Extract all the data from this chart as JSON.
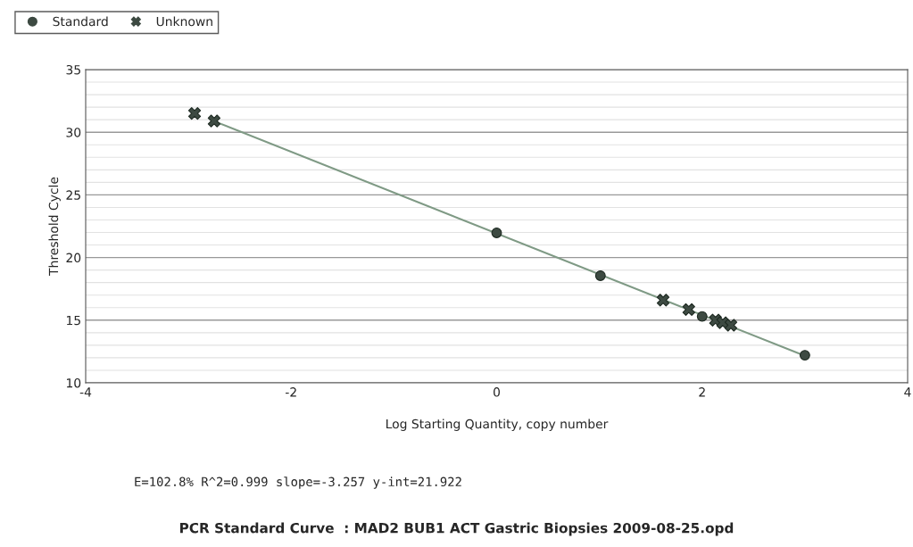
{
  "chart_data": {
    "type": "scatter",
    "title": "PCR Standard Curve  : MAD2 BUB1 ACT Gastric Biopsies 2009-08-25.opd",
    "xlabel": "Log Starting Quantity, copy number",
    "ylabel": "Threshold Cycle",
    "series": [
      {
        "name": "Standard",
        "marker": "circle",
        "color": "#3d4a42",
        "x": [
          0,
          1.01,
          2.0,
          3.0
        ],
        "values": [
          21.97,
          18.55,
          15.3,
          12.2
        ]
      },
      {
        "name": "Unknown",
        "marker": "cross",
        "color": "#3d4a42",
        "x": [
          -2.94,
          -2.75,
          1.62,
          1.87,
          2.13,
          2.2,
          2.28
        ],
        "values": [
          31.5,
          30.9,
          16.6,
          15.85,
          15.0,
          14.8,
          14.6
        ]
      },
      {
        "type": "line",
        "marker": "none",
        "color": "#7f9a85",
        "x": [
          -2.75,
          3.0
        ],
        "values": [
          30.88,
          12.15
        ]
      }
    ],
    "xlim": [
      -4,
      4
    ],
    "xticks": [
      -4,
      -2,
      0,
      2,
      4
    ],
    "ylim": [
      10,
      35
    ],
    "yticks": [
      10,
      15,
      20,
      25,
      30,
      35
    ],
    "grid": "y",
    "legend": "top left",
    "annotations": [
      "E=102.8% R^2=0.999 slope=-3.257 y-int=21.922"
    ]
  }
}
